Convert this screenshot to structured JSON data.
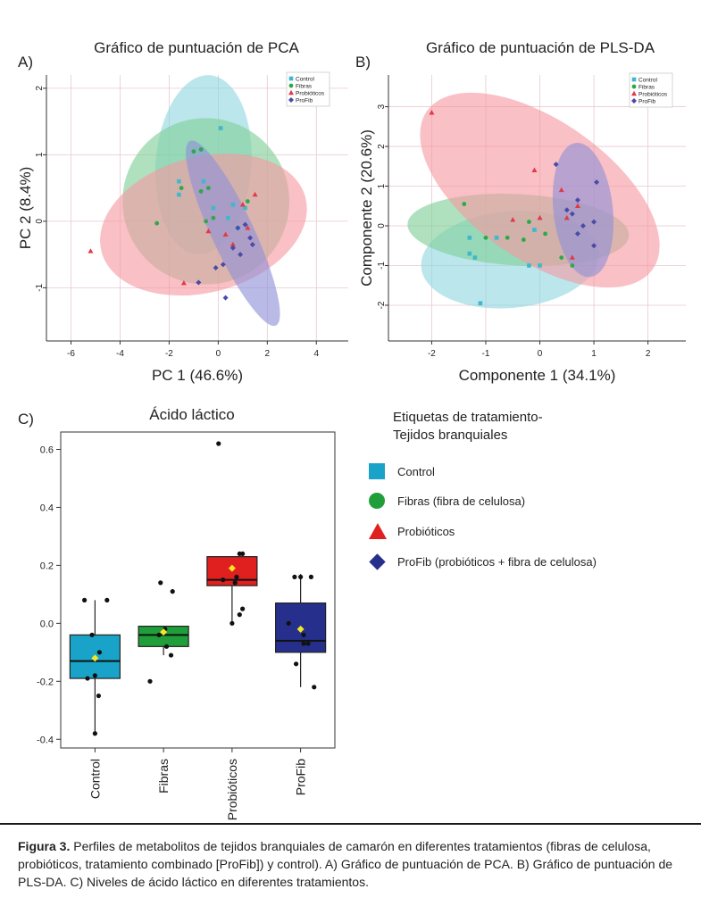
{
  "legend_groups": [
    {
      "name": "Control",
      "color": "#3fb8cc"
    },
    {
      "name": "Fibras",
      "color": "#2ea84a"
    },
    {
      "name": "Probióticos",
      "color": "#e03a47"
    },
    {
      "name": "ProFib",
      "color": "#4a4aa8"
    }
  ],
  "panel_a": {
    "letter": "A)",
    "title": "Gráfico de puntuación de PCA"
  },
  "panel_b": {
    "letter": "B)",
    "title": "Gráfico de puntuación de PLS-DA"
  },
  "panel_c": {
    "letter": "C)",
    "title": "Ácido láctico"
  },
  "treatment_legend": {
    "title_line1": "Etiquetas de tratamiento-",
    "title_line2": "Tejidos branquiales",
    "items": [
      {
        "label": "Control",
        "color": "#1aa3c8",
        "shape": "square"
      },
      {
        "label": "Fibras (fibra de celulosa)",
        "color": "#1f9e3a",
        "shape": "circle"
      },
      {
        "label": "Probióticos",
        "color": "#e0201f",
        "shape": "triangle"
      },
      {
        "label": "ProFib (probióticos + fibra de celulosa)",
        "color": "#26308c",
        "shape": "diamond"
      }
    ]
  },
  "caption": {
    "label": "Figura 3.",
    "text": " Perfiles de metabolitos de tejidos branquiales de camarón en diferentes tratamientos (fibras de celulosa, probióticos, tratamiento combinado [ProFib]) y control). A) Gráfico de puntuación de PCA. B) Gráfico de puntuación de PLS-DA. C) Niveles de ácido láctico en diferentes tratamientos."
  },
  "chart_data": [
    {
      "type": "scatter",
      "title": "Gráfico de puntuación de PCA",
      "xlabel": "PC 1 (46.6%)",
      "ylabel": "PC 2 (8.4%)",
      "xlim": [
        -7,
        5.3
      ],
      "ylim": [
        -1.8,
        2.2
      ],
      "xticks": [
        -6,
        -4,
        -2,
        0,
        2,
        4
      ],
      "yticks": [
        -1,
        0,
        1,
        2
      ],
      "grid": true,
      "legend_position": "top-right",
      "ellipses": [
        {
          "series": "Control",
          "cx": -0.6,
          "cy": 0.85,
          "rx": 1.95,
          "ry": 1.35,
          "angle": -4
        },
        {
          "series": "Fibras",
          "cx": -0.5,
          "cy": 0.3,
          "rx": 3.4,
          "ry": 1.25,
          "angle": -6
        },
        {
          "series": "Probióticos",
          "cx": -0.6,
          "cy": -0.05,
          "rx": 4.3,
          "ry": 1.02,
          "angle": 15
        },
        {
          "series": "ProFib",
          "cx": 0.6,
          "cy": -0.18,
          "rx": 0.86,
          "ry": 1.53,
          "angle": 25
        }
      ],
      "series": [
        {
          "name": "Control",
          "points": [
            [
              0.1,
              1.4
            ],
            [
              -1.6,
              0.6
            ],
            [
              -1.6,
              0.4
            ],
            [
              0.6,
              0.25
            ],
            [
              1.1,
              0.2
            ],
            [
              0.4,
              0.05
            ],
            [
              -0.6,
              0.6
            ],
            [
              -0.2,
              0.2
            ],
            [
              0.8,
              -0.1
            ]
          ]
        },
        {
          "name": "Fibras",
          "points": [
            [
              -1.0,
              1.05
            ],
            [
              -0.7,
              1.08
            ],
            [
              -2.5,
              -0.03
            ],
            [
              -0.4,
              0.5
            ],
            [
              -0.7,
              0.45
            ],
            [
              -1.5,
              0.5
            ],
            [
              -0.5,
              0.0
            ],
            [
              -0.2,
              0.05
            ],
            [
              1.2,
              0.3
            ]
          ]
        },
        {
          "name": "Probióticos",
          "points": [
            [
              -5.2,
              -0.45
            ],
            [
              -1.4,
              -0.93
            ],
            [
              -0.4,
              -0.15
            ],
            [
              0.6,
              -0.35
            ],
            [
              1.5,
              0.4
            ],
            [
              1.0,
              0.25
            ],
            [
              1.2,
              -0.1
            ],
            [
              0.3,
              -0.2
            ]
          ]
        },
        {
          "name": "ProFib",
          "points": [
            [
              -0.8,
              -0.92
            ],
            [
              -0.1,
              -0.7
            ],
            [
              0.2,
              -0.65
            ],
            [
              0.3,
              -1.15
            ],
            [
              0.8,
              -0.1
            ],
            [
              1.3,
              -0.25
            ],
            [
              0.6,
              -0.4
            ],
            [
              1.1,
              -0.05
            ],
            [
              1.4,
              -0.35
            ],
            [
              0.9,
              -0.5
            ]
          ]
        }
      ]
    },
    {
      "type": "scatter",
      "title": "Gráfico de puntuación de PLS-DA",
      "xlabel": "Componente 1 (34.1%)",
      "ylabel": "Componente 2 (20.6%)",
      "xlim": [
        -2.8,
        2.7
      ],
      "ylim": [
        -2.9,
        3.8
      ],
      "xticks": [
        -2,
        -1,
        0,
        1,
        2
      ],
      "yticks": [
        -2,
        -1,
        0,
        1,
        2,
        3
      ],
      "grid": true,
      "legend_position": "top-right",
      "ellipses": [
        {
          "series": "Control",
          "cx": -0.55,
          "cy": -0.85,
          "rx": 1.65,
          "ry": 1.22,
          "angle": 5
        },
        {
          "series": "Fibras",
          "cx": -0.4,
          "cy": -0.1,
          "rx": 2.05,
          "ry": 0.9,
          "angle": -3
        },
        {
          "series": "Probióticos",
          "cx": 0.0,
          "cy": 0.9,
          "rx": 2.55,
          "ry": 1.75,
          "angle": -35
        },
        {
          "series": "ProFib",
          "cx": 0.8,
          "cy": 0.4,
          "rx": 0.55,
          "ry": 1.7,
          "angle": 6
        }
      ],
      "series": [
        {
          "name": "Control",
          "points": [
            [
              -1.1,
              -1.95
            ],
            [
              -1.3,
              -0.3
            ],
            [
              -1.3,
              -0.7
            ],
            [
              -0.2,
              -1.0
            ],
            [
              0.0,
              -1.0
            ],
            [
              -1.2,
              -0.8
            ],
            [
              -0.8,
              -0.3
            ],
            [
              -0.1,
              -0.1
            ]
          ]
        },
        {
          "name": "Fibras",
          "points": [
            [
              -1.4,
              0.55
            ],
            [
              -1.0,
              -0.3
            ],
            [
              -0.6,
              -0.3
            ],
            [
              -0.3,
              -0.35
            ],
            [
              0.4,
              -0.8
            ],
            [
              0.6,
              -1.0
            ],
            [
              0.1,
              -0.2
            ],
            [
              -0.2,
              0.1
            ]
          ]
        },
        {
          "name": "Probióticos",
          "points": [
            [
              -2.0,
              2.85
            ],
            [
              -0.1,
              1.4
            ],
            [
              0.4,
              0.9
            ],
            [
              0.7,
              0.5
            ],
            [
              -0.5,
              0.15
            ],
            [
              0.0,
              0.2
            ],
            [
              0.6,
              -0.8
            ],
            [
              0.5,
              0.2
            ]
          ]
        },
        {
          "name": "ProFib",
          "points": [
            [
              0.3,
              1.55
            ],
            [
              1.05,
              1.1
            ],
            [
              0.7,
              0.65
            ],
            [
              0.5,
              0.4
            ],
            [
              0.8,
              0.0
            ],
            [
              1.0,
              0.1
            ],
            [
              0.7,
              -0.2
            ],
            [
              1.0,
              -0.5
            ],
            [
              0.6,
              0.3
            ]
          ]
        }
      ]
    },
    {
      "type": "box",
      "title": "Ácido láctico",
      "xlabel": "",
      "ylabel": "",
      "categories": [
        "Control",
        "Fibras",
        "Probióticos",
        "ProFib"
      ],
      "ylim": [
        -0.43,
        0.66
      ],
      "yticks": [
        -0.4,
        -0.2,
        0.0,
        0.2,
        0.4,
        0.6
      ],
      "grid": false,
      "boxes": [
        {
          "name": "Control",
          "color": "#1aa3c8",
          "q1": -0.19,
          "median": -0.13,
          "q3": -0.04,
          "whisker_low": -0.38,
          "whisker_high": 0.08,
          "mean": -0.12,
          "points": [
            [
              -0.35,
              0.08
            ],
            [
              0.4,
              0.08
            ],
            [
              -0.1,
              -0.04
            ],
            [
              0.0,
              -0.18
            ],
            [
              0.12,
              -0.25
            ],
            [
              0.0,
              -0.38
            ],
            [
              -0.25,
              -0.19
            ],
            [
              0.15,
              -0.1
            ]
          ]
        },
        {
          "name": "Fibras",
          "color": "#1f9e3a",
          "q1": -0.08,
          "median": -0.04,
          "q3": -0.01,
          "whisker_low": -0.11,
          "whisker_high": -0.01,
          "mean": -0.03,
          "points": [
            [
              -0.1,
              0.14
            ],
            [
              0.3,
              0.11
            ],
            [
              -0.45,
              -0.2
            ],
            [
              0.05,
              -0.02
            ],
            [
              0.25,
              -0.11
            ],
            [
              -0.15,
              -0.04
            ],
            [
              0.1,
              -0.08
            ]
          ]
        },
        {
          "name": "Probióticos",
          "color": "#e0201f",
          "q1": 0.13,
          "median": 0.15,
          "q3": 0.23,
          "whisker_low": 0.0,
          "whisker_high": 0.23,
          "mean": 0.19,
          "points": [
            [
              -0.45,
              0.62
            ],
            [
              0.25,
              0.24
            ],
            [
              0.35,
              0.24
            ],
            [
              0.0,
              0.0
            ],
            [
              0.25,
              0.03
            ],
            [
              0.15,
              0.16
            ],
            [
              -0.3,
              0.15
            ],
            [
              0.1,
              0.14
            ],
            [
              0.35,
              0.05
            ]
          ]
        },
        {
          "name": "ProFib",
          "color": "#26308c",
          "q1": -0.1,
          "median": -0.06,
          "q3": 0.07,
          "whisker_low": -0.22,
          "whisker_high": 0.17,
          "mean": -0.02,
          "points": [
            [
              -0.2,
              0.16
            ],
            [
              0.0,
              0.16
            ],
            [
              0.35,
              0.16
            ],
            [
              -0.4,
              0.0
            ],
            [
              0.1,
              -0.07
            ],
            [
              0.25,
              -0.07
            ],
            [
              -0.15,
              -0.14
            ],
            [
              0.45,
              -0.22
            ],
            [
              0.1,
              -0.04
            ]
          ]
        }
      ]
    }
  ]
}
